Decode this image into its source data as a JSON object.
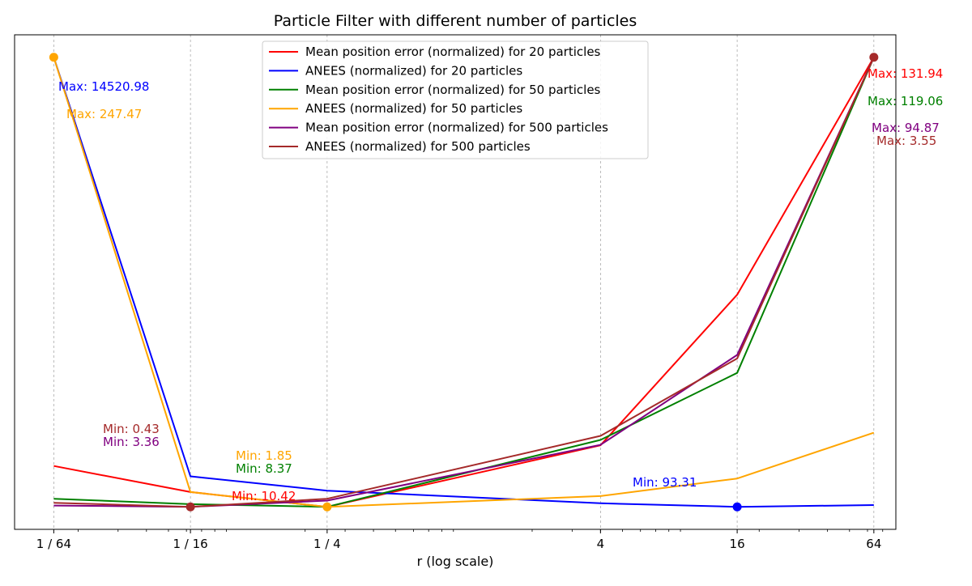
{
  "chart_data": {
    "type": "line",
    "title": "Particle Filter with different number of particles",
    "xlabel": "r (log scale)",
    "ylabel": "",
    "x_scale": "log2",
    "x": [
      0.015625,
      0.0625,
      0.25,
      4,
      16,
      64
    ],
    "x_tick_labels": [
      "1 / 64",
      "1 / 16",
      "1 / 4",
      "4",
      "16",
      "64"
    ],
    "xlim": [
      0.0105,
      80
    ],
    "ylim": [
      -0.05,
      1.05
    ],
    "y_values_normalized": true,
    "grid": "x-major dashed",
    "legend_position": "top-center",
    "series": [
      {
        "name": "Mean position error (normalized) for 20 particles",
        "color": "#ff0000",
        "values": [
          0.091,
          0.033,
          0.0,
          0.137,
          0.472,
          1.0
        ]
      },
      {
        "name": "ANEES (normalized) for 20 particles",
        "color": "#0000ff",
        "values": [
          1.0,
          0.068,
          0.036,
          0.008,
          0.0,
          0.004
        ]
      },
      {
        "name": "Mean position error (normalized) for 50 particles",
        "color": "#008000",
        "values": [
          0.018,
          0.006,
          0.0,
          0.149,
          0.298,
          1.0
        ]
      },
      {
        "name": "ANEES (normalized) for 50 particles",
        "color": "#ffa500",
        "values": [
          1.0,
          0.033,
          0.0,
          0.024,
          0.063,
          0.165
        ]
      },
      {
        "name": "Mean position error (normalized) for 500 particles",
        "color": "#800080",
        "values": [
          0.003,
          0.0,
          0.014,
          0.138,
          0.338,
          1.0
        ]
      },
      {
        "name": "ANEES (normalized) for 500 particles",
        "color": "#a52a2a",
        "values": [
          0.009,
          0.0,
          0.018,
          0.158,
          0.33,
          1.0
        ]
      }
    ],
    "markers": [
      {
        "x": 0.015625,
        "y": 1.0,
        "color": "#ffa500"
      },
      {
        "x": 0.0625,
        "y": 0.0,
        "color": "#a52a2a"
      },
      {
        "x": 0.25,
        "y": 0.0,
        "color": "#ffa500"
      },
      {
        "x": 16,
        "y": 0.0,
        "color": "#0000ff"
      },
      {
        "x": 64,
        "y": 1.0,
        "color": "#a52a2a"
      }
    ],
    "annotations": [
      {
        "text": "Max: 14520.98",
        "color": "#0000ff"
      },
      {
        "text": "Max: 247.47",
        "color": "#ffa500"
      },
      {
        "text": "Max: 131.94",
        "color": "#ff0000"
      },
      {
        "text": "Max: 119.06",
        "color": "#008000"
      },
      {
        "text": "Max: 94.87",
        "color": "#800080"
      },
      {
        "text": "Max: 3.55",
        "color": "#a52a2a"
      },
      {
        "text": "Min: 0.43",
        "color": "#a52a2a"
      },
      {
        "text": "Min: 3.36",
        "color": "#800080"
      },
      {
        "text": "Min: 1.85",
        "color": "#ffa500"
      },
      {
        "text": "Min: 8.37",
        "color": "#008000"
      },
      {
        "text": "Min: 10.42",
        "color": "#ff0000"
      },
      {
        "text": "Min: 93.31",
        "color": "#0000ff"
      }
    ]
  }
}
